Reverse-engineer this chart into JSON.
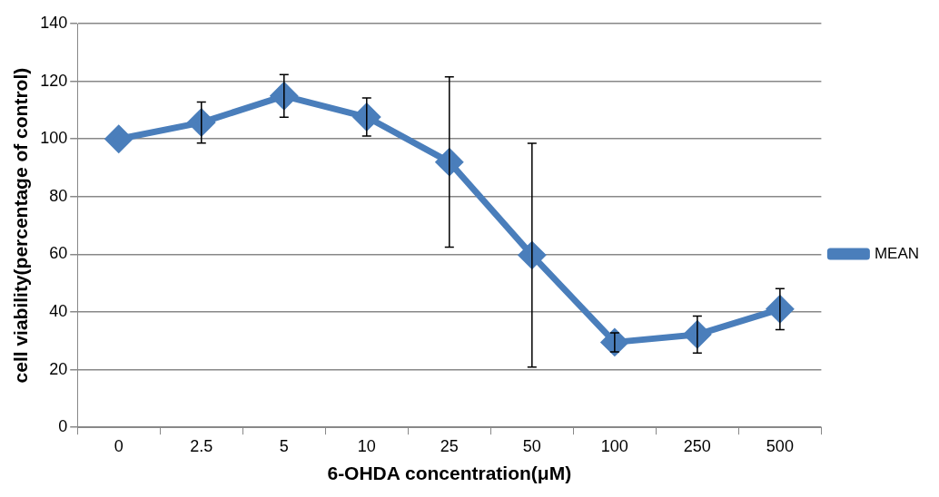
{
  "chart_data": {
    "type": "line",
    "xlabel": "6-OHDA concentration(μM)",
    "ylabel": "cell viability(percentage of control)",
    "categories": [
      "0",
      "2.5",
      "5",
      "10",
      "25",
      "50",
      "100",
      "250",
      "500"
    ],
    "series": [
      {
        "name": "MEAN",
        "color": "#4a7ebb",
        "values": [
          100,
          105.7,
          114.9,
          107.6,
          92,
          59.7,
          29.5,
          32.2,
          41
        ],
        "errors": [
          null,
          7.1,
          7.4,
          6.6,
          29.5,
          38.8,
          3.3,
          6.4,
          7.1
        ]
      }
    ],
    "ylim": [
      0,
      140
    ],
    "yticks": [
      0,
      20,
      40,
      60,
      80,
      100,
      120,
      140
    ],
    "grid": "y",
    "legend": "right",
    "marker": "diamond",
    "line_style": "solid"
  }
}
